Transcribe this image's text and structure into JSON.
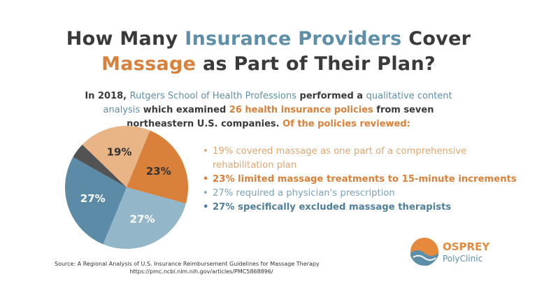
{
  "chart_data": {
    "type": "pie",
    "title_line1": [
      "How Many",
      "Insurance Providers",
      "Cover"
    ],
    "title_line2": [
      "Massage",
      "as Part of Their Plan?"
    ],
    "intro": [
      "In 2018,",
      "Rutgers School of Health Professions",
      "performed a",
      "qualitative content analysis",
      "which examined",
      "26 health insurance policies",
      "from seven northeastern U.S. companies.",
      "Of the policies reviewed:"
    ],
    "categories": [
      "19% covered massage as one part of a comprehensive rehabilitation plan",
      "23% limited massage treatments to 15-minute increments",
      "27% required a physician's prescription",
      "27% specifically excluded massage therapists",
      null
    ],
    "values": [
      19,
      23,
      27,
      27,
      4
    ],
    "value_labels": [
      "19%",
      "23%",
      "27%",
      "27%",
      null
    ],
    "colors": [
      "#e9b586",
      "#d9813a",
      "#93b6c8",
      "#5b8ba7",
      "#535353"
    ],
    "source": [
      "Source: A Regional Analysis of U.S. Insurance Reimbursement Guidelines for Massage Therapy",
      "https://pmc.ncbi.nlm.nih.gov/articles/PMC5868896/"
    ],
    "logo": [
      "OSPREY",
      "PolyClinic"
    ]
  }
}
